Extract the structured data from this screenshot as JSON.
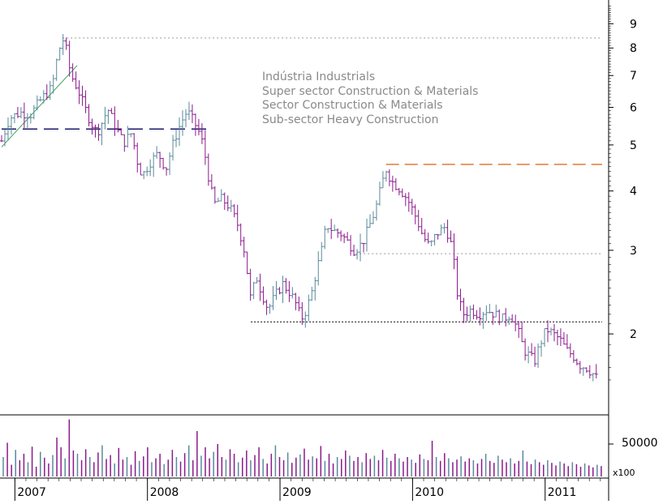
{
  "chart_data": {
    "type": "ohlc",
    "title": "",
    "annotations": [
      "Indústria Industrials",
      "Super sector Construction & Materials",
      "Sector Construction & Materials",
      "Sub-sector Heavy Construction"
    ],
    "y_axis": {
      "scale": "log",
      "ylim": [
        1.55,
        9.9
      ],
      "ticks": [
        2,
        3,
        4,
        5,
        6,
        7,
        8,
        9
      ],
      "tick_labels": [
        "2",
        "3",
        "4",
        "5",
        "6",
        "7",
        "8",
        "9"
      ],
      "side": "right"
    },
    "x_axis": {
      "range": [
        2006.9,
        2011.43
      ],
      "year_markers": [
        2007.0,
        2008.0,
        2009.0,
        2010.0,
        2011.0
      ],
      "year_labels": [
        "2007",
        "2008",
        "2009",
        "2010",
        "2011"
      ]
    },
    "price_series": [
      {
        "t": 2006.9,
        "p": 5.1
      },
      {
        "t": 2006.96,
        "p": 5.7
      },
      {
        "t": 2007.04,
        "p": 5.85
      },
      {
        "t": 2007.12,
        "p": 5.8
      },
      {
        "t": 2007.2,
        "p": 6.25
      },
      {
        "t": 2007.28,
        "p": 6.6
      },
      {
        "t": 2007.33,
        "p": 7.9
      },
      {
        "t": 2007.37,
        "p": 8.4
      },
      {
        "t": 2007.42,
        "p": 7.05
      },
      {
        "t": 2007.48,
        "p": 6.5
      },
      {
        "t": 2007.52,
        "p": 6.05
      },
      {
        "t": 2007.57,
        "p": 5.6
      },
      {
        "t": 2007.62,
        "p": 5.3
      },
      {
        "t": 2007.66,
        "p": 5.6
      },
      {
        "t": 2007.7,
        "p": 5.95
      },
      {
        "t": 2007.76,
        "p": 5.45
      },
      {
        "t": 2007.82,
        "p": 5.05
      },
      {
        "t": 2007.88,
        "p": 5.3
      },
      {
        "t": 2007.92,
        "p": 4.65
      },
      {
        "t": 2007.96,
        "p": 4.3
      },
      {
        "t": 2008.02,
        "p": 4.6
      },
      {
        "t": 2008.08,
        "p": 4.8
      },
      {
        "t": 2008.14,
        "p": 4.45
      },
      {
        "t": 2008.2,
        "p": 5.1
      },
      {
        "t": 2008.25,
        "p": 5.55
      },
      {
        "t": 2008.3,
        "p": 5.9
      },
      {
        "t": 2008.34,
        "p": 5.65
      },
      {
        "t": 2008.38,
        "p": 5.4
      },
      {
        "t": 2008.42,
        "p": 5.0
      },
      {
        "t": 2008.46,
        "p": 4.3
      },
      {
        "t": 2008.5,
        "p": 3.75
      },
      {
        "t": 2008.56,
        "p": 3.85
      },
      {
        "t": 2008.62,
        "p": 3.7
      },
      {
        "t": 2008.68,
        "p": 3.4
      },
      {
        "t": 2008.73,
        "p": 3.0
      },
      {
        "t": 2008.78,
        "p": 2.35
      },
      {
        "t": 2008.82,
        "p": 2.65
      },
      {
        "t": 2008.86,
        "p": 2.45
      },
      {
        "t": 2008.91,
        "p": 2.25
      },
      {
        "t": 2008.96,
        "p": 2.4
      },
      {
        "t": 2009.02,
        "p": 2.55
      },
      {
        "t": 2009.07,
        "p": 2.45
      },
      {
        "t": 2009.11,
        "p": 2.35
      },
      {
        "t": 2009.16,
        "p": 2.15
      },
      {
        "t": 2009.2,
        "p": 2.25
      },
      {
        "t": 2009.24,
        "p": 2.45
      },
      {
        "t": 2009.28,
        "p": 2.75
      },
      {
        "t": 2009.32,
        "p": 3.05
      },
      {
        "t": 2009.35,
        "p": 3.4
      },
      {
        "t": 2009.4,
        "p": 3.3
      },
      {
        "t": 2009.46,
        "p": 3.25
      },
      {
        "t": 2009.52,
        "p": 3.1
      },
      {
        "t": 2009.56,
        "p": 3.0
      },
      {
        "t": 2009.62,
        "p": 3.1
      },
      {
        "t": 2009.67,
        "p": 3.35
      },
      {
        "t": 2009.72,
        "p": 3.65
      },
      {
        "t": 2009.76,
        "p": 4.05
      },
      {
        "t": 2009.8,
        "p": 4.45
      },
      {
        "t": 2009.84,
        "p": 4.2
      },
      {
        "t": 2009.9,
        "p": 4.05
      },
      {
        "t": 2009.96,
        "p": 3.85
      },
      {
        "t": 2010.02,
        "p": 3.55
      },
      {
        "t": 2010.08,
        "p": 3.2
      },
      {
        "t": 2010.13,
        "p": 3.05
      },
      {
        "t": 2010.18,
        "p": 3.25
      },
      {
        "t": 2010.24,
        "p": 3.35
      },
      {
        "t": 2010.28,
        "p": 3.2
      },
      {
        "t": 2010.31,
        "p": 2.85
      },
      {
        "t": 2010.34,
        "p": 2.4
      },
      {
        "t": 2010.38,
        "p": 2.2
      },
      {
        "t": 2010.44,
        "p": 2.25
      },
      {
        "t": 2010.5,
        "p": 2.2
      },
      {
        "t": 2010.56,
        "p": 2.25
      },
      {
        "t": 2010.62,
        "p": 2.2
      },
      {
        "t": 2010.68,
        "p": 2.15
      },
      {
        "t": 2010.74,
        "p": 2.2
      },
      {
        "t": 2010.79,
        "p": 2.05
      },
      {
        "t": 2010.84,
        "p": 1.85
      },
      {
        "t": 2010.88,
        "p": 1.8
      },
      {
        "t": 2010.92,
        "p": 1.75
      },
      {
        "t": 2010.96,
        "p": 1.9
      },
      {
        "t": 2011.01,
        "p": 2.05
      },
      {
        "t": 2011.06,
        "p": 2.0
      },
      {
        "t": 2011.11,
        "p": 1.95
      },
      {
        "t": 2011.16,
        "p": 1.85
      },
      {
        "t": 2011.21,
        "p": 1.8
      },
      {
        "t": 2011.26,
        "p": 1.72
      },
      {
        "t": 2011.31,
        "p": 1.7
      },
      {
        "t": 2011.36,
        "p": 1.65
      },
      {
        "t": 2011.4,
        "p": 1.6
      }
    ],
    "reference_lines": [
      {
        "kind": "dotted-grey",
        "y": 8.4,
        "x_from": 2007.36,
        "x_to": 2011.43
      },
      {
        "kind": "dashed-navy",
        "y": 5.4,
        "x_from": 2006.9,
        "x_to": 2008.48
      },
      {
        "kind": "dashed-orange",
        "y": 4.55,
        "x_from": 2009.8,
        "x_to": 2011.43
      },
      {
        "kind": "dotted-grey",
        "y": 2.95,
        "x_from": 2009.57,
        "x_to": 2011.43
      },
      {
        "kind": "dotted-black",
        "y": 2.12,
        "x_from": 2008.78,
        "x_to": 2011.43
      }
    ],
    "trend_line": {
      "x": [
        2006.9,
        2007.47
      ],
      "y": [
        4.95,
        7.35
      ]
    },
    "volume": {
      "unit_label": "x100",
      "tick_label": "50000",
      "tick_value": 50000,
      "ylim": [
        0,
        90000
      ],
      "series": [
        30000,
        52000,
        18000,
        41000,
        25000,
        35000,
        22000,
        46000,
        15000,
        38000,
        29000,
        20000,
        33000,
        60000,
        45000,
        28000,
        88000,
        40000,
        35000,
        25000,
        42000,
        30000,
        22000,
        37000,
        48000,
        27000,
        33000,
        20000,
        44000,
        26000,
        30000,
        18000,
        39000,
        24000,
        31000,
        45000,
        22000,
        28000,
        35000,
        19000,
        26000,
        41000,
        30000,
        23000,
        36000,
        48000,
        25000,
        70000,
        32000,
        45000,
        28000,
        38000,
        50000,
        30000,
        26000,
        42000,
        35000,
        22000,
        29000,
        40000,
        25000,
        33000,
        45000,
        27000,
        20000,
        35000,
        48000,
        30000,
        25000,
        37000,
        21000,
        29000,
        34000,
        43000,
        26000,
        31000,
        28000,
        47000,
        24000,
        35000,
        20000,
        30000,
        27000,
        40000,
        32000,
        24000,
        30000,
        22000,
        36000,
        27000,
        32000,
        25000,
        41000,
        29000,
        24000,
        35000,
        28000,
        23000,
        30000,
        26000,
        21000,
        34000,
        27000,
        25000,
        55000,
        30000,
        24000,
        36000,
        28000,
        22000,
        26000,
        31000,
        23000,
        28000,
        25000,
        20000,
        27000,
        35000,
        24000,
        21000,
        32000,
        26000,
        22000,
        28000,
        20000,
        24000,
        40000,
        23000,
        19000,
        26000,
        22000,
        18000,
        25000,
        21000,
        17000,
        23000,
        20000,
        16000,
        22000,
        19000,
        15000,
        20000,
        17000,
        14000,
        18000,
        16000
      ]
    }
  }
}
